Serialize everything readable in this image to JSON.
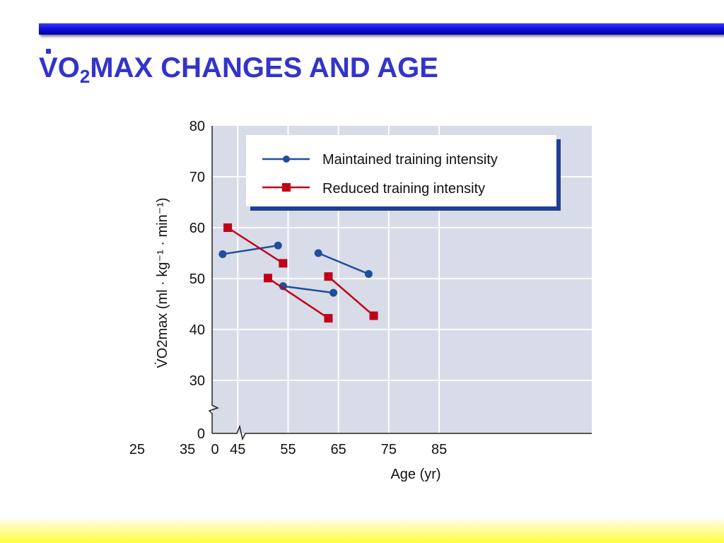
{
  "slide": {
    "title_prefix": "V",
    "title_o": "O",
    "title_sub": "2",
    "title_rest": "MAX CHANGES AND AGE",
    "accent_color": "#3333cc",
    "top_bar_color": "#1010e0",
    "bottom_bar_color": "#ffff40"
  },
  "chart_data": {
    "type": "line",
    "xlabel": "Age (yr)",
    "ylabel": "V̇O2max (ml · kg⁻¹ · min⁻¹)",
    "x_ticks": [
      0,
      25,
      35,
      45,
      55,
      65,
      75,
      85
    ],
    "y_ticks": [
      0,
      30,
      40,
      50,
      60,
      70,
      80
    ],
    "xlim": [
      17,
      90
    ],
    "ylim": [
      25,
      80
    ],
    "axis_breaks": [
      "x",
      "y"
    ],
    "grid": true,
    "plot_background": "#d8dbe8",
    "legend_position": "top",
    "series": [
      {
        "name": "Maintained training intensity",
        "marker": "circle",
        "color": "#1f4f9a",
        "segments": [
          [
            {
              "x": 42,
              "y": 54.8
            },
            {
              "x": 53,
              "y": 56.5
            }
          ],
          [
            {
              "x": 54,
              "y": 48.5
            },
            {
              "x": 64,
              "y": 47.2
            }
          ],
          [
            {
              "x": 61,
              "y": 55
            },
            {
              "x": 71,
              "y": 50.9
            }
          ]
        ]
      },
      {
        "name": "Reduced training intensity",
        "marker": "square",
        "color": "#c00018",
        "segments": [
          [
            {
              "x": 43,
              "y": 60
            },
            {
              "x": 54,
              "y": 53
            }
          ],
          [
            {
              "x": 51,
              "y": 50.1
            },
            {
              "x": 63,
              "y": 42.2
            }
          ],
          [
            {
              "x": 63,
              "y": 50.4
            },
            {
              "x": 72,
              "y": 42.7
            }
          ]
        ]
      }
    ]
  }
}
